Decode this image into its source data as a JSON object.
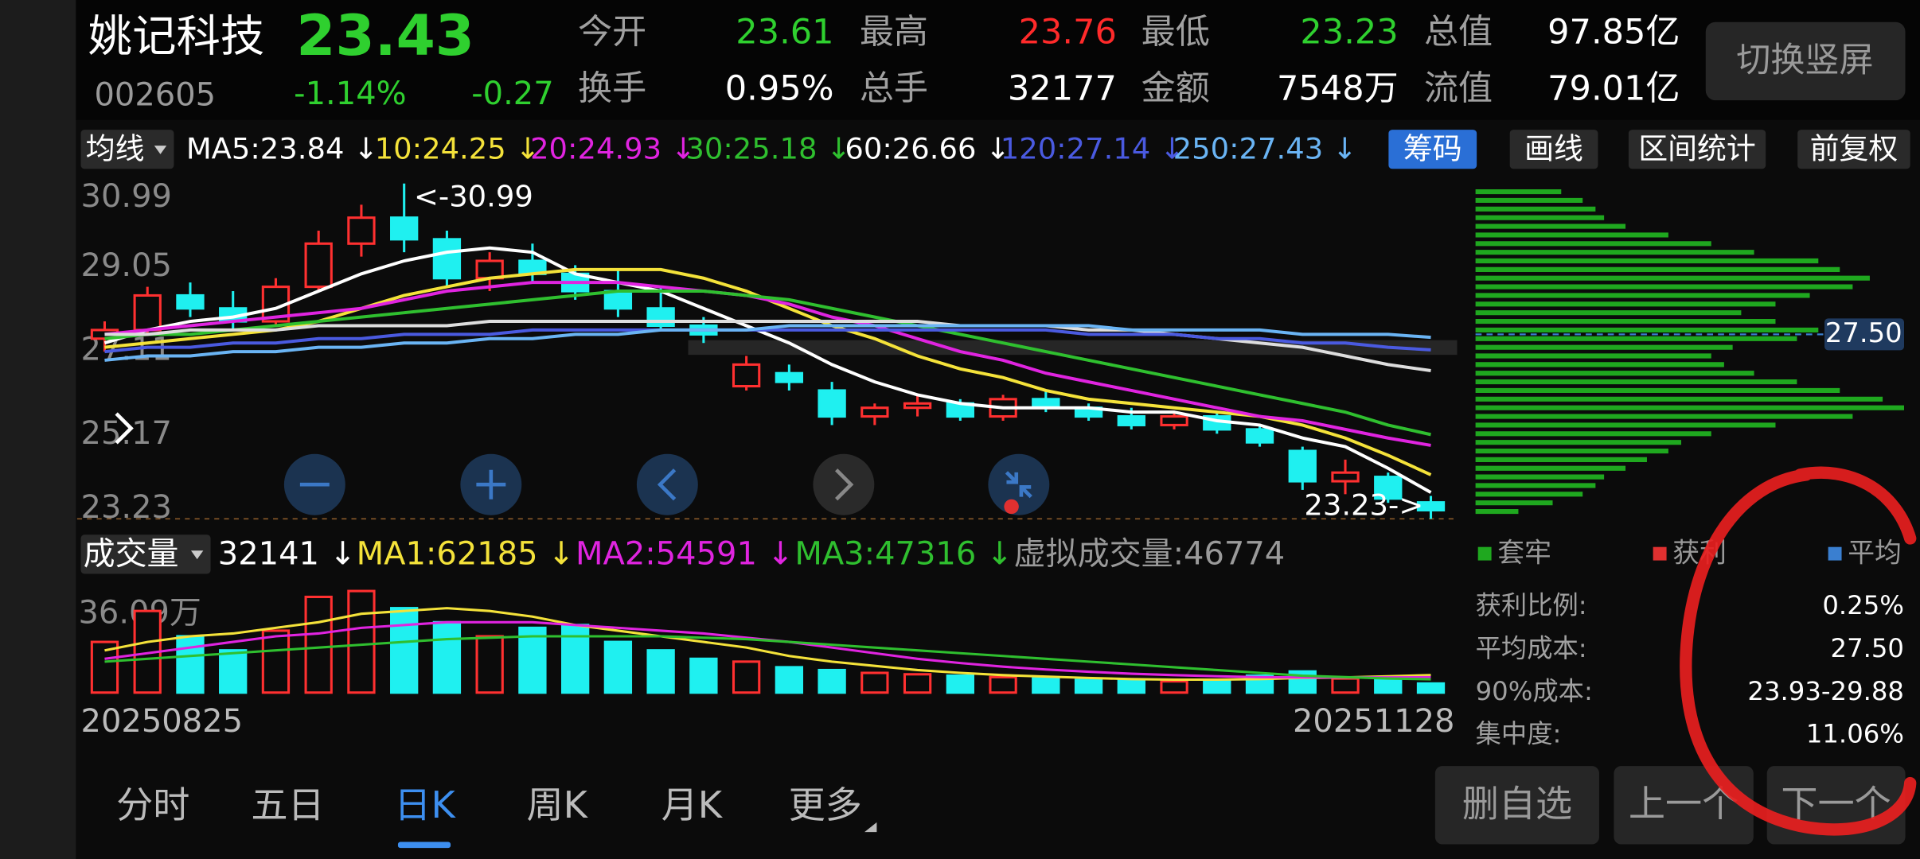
{
  "header": {
    "name": "姚记科技",
    "price": "23.43",
    "code": "002605",
    "change_pct": "-1.14%",
    "change": "-0.27",
    "quotes": [
      {
        "label": "今开",
        "value": "23.61"
      },
      {
        "label": "最高",
        "value": "23.76"
      },
      {
        "label": "最低",
        "value": "23.23"
      },
      {
        "label": "总值",
        "value": "97.85亿"
      },
      {
        "label": "换手",
        "value": "0.95%"
      },
      {
        "label": "总手",
        "value": "32177"
      },
      {
        "label": "金额",
        "value": "7548万"
      },
      {
        "label": "流值",
        "value": "79.01亿"
      }
    ],
    "switch_button": "切换竖屏"
  },
  "toolbar": {
    "ma_menu": "均线",
    "ma_legend": [
      {
        "text": "MA5:23.84 ↓",
        "color": "#ffffff"
      },
      {
        "text": "10:24.25 ↓",
        "color": "#f4e23a"
      },
      {
        "text": "20:24.93 ↓",
        "color": "#e024e0"
      },
      {
        "text": "30:25.18 ↓",
        "color": "#2fbf2f"
      },
      {
        "text": "60:26.66 ↓",
        "color": "#ffffff"
      },
      {
        "text": "120:27.14 ↓",
        "color": "#4a5ae0"
      },
      {
        "text": "250:27.43 ↓",
        "color": "#6ab4f4"
      }
    ],
    "buttons": [
      "筹码",
      "画线",
      "区间统计",
      "前复权"
    ]
  },
  "kline": {
    "type": "candlestick",
    "categories": [
      "20250825",
      null,
      null,
      null,
      null,
      null,
      null,
      null,
      null,
      null,
      null,
      null,
      null,
      null,
      null,
      null,
      null,
      null,
      null,
      null,
      null,
      null,
      null,
      null,
      null,
      null,
      null,
      null,
      null,
      null,
      null,
      "20251128"
    ],
    "open": [
      27.4,
      27.6,
      28.4,
      28.1,
      27.8,
      28.6,
      29.6,
      30.2,
      29.7,
      28.8,
      29.2,
      28.9,
      28.5,
      28.1,
      27.7,
      26.3,
      26.6,
      26.2,
      25.6,
      25.8,
      25.9,
      25.6,
      26.0,
      25.8,
      25.6,
      25.4,
      25.6,
      25.3,
      24.8,
      24.1,
      24.2,
      23.61
    ],
    "high": [
      27.8,
      28.6,
      28.7,
      28.5,
      28.8,
      29.9,
      30.5,
      30.99,
      29.9,
      29.4,
      29.6,
      29.1,
      29.0,
      28.6,
      27.9,
      27.0,
      26.8,
      26.4,
      25.9,
      26.1,
      26.0,
      26.1,
      26.2,
      25.9,
      25.8,
      25.7,
      25.7,
      25.4,
      24.9,
      24.6,
      24.3,
      23.76
    ],
    "low": [
      27.1,
      27.5,
      27.9,
      27.6,
      27.7,
      28.5,
      29.3,
      29.4,
      28.6,
      28.5,
      28.7,
      28.3,
      27.9,
      27.6,
      27.3,
      26.2,
      26.2,
      25.4,
      25.4,
      25.6,
      25.5,
      25.5,
      25.7,
      25.5,
      25.3,
      25.3,
      25.2,
      24.9,
      23.9,
      23.8,
      23.6,
      23.23
    ],
    "close": [
      27.6,
      28.4,
      28.1,
      27.8,
      28.6,
      29.6,
      30.2,
      29.7,
      28.8,
      29.2,
      28.9,
      28.5,
      28.1,
      27.7,
      27.5,
      26.8,
      26.4,
      25.6,
      25.8,
      25.9,
      25.6,
      26.0,
      25.8,
      25.6,
      25.4,
      25.6,
      25.3,
      25.0,
      24.1,
      24.3,
      23.7,
      23.43
    ],
    "up_color": "#ff3030",
    "down_color": "#1ff0f0",
    "series": [
      {
        "color": "#ffffff",
        "values": [
          27.3,
          27.6,
          27.8,
          27.9,
          28.1,
          28.5,
          28.9,
          29.2,
          29.4,
          29.5,
          29.4,
          28.9,
          28.7,
          28.5,
          28.1,
          27.7,
          27.3,
          26.8,
          26.4,
          26.1,
          25.9,
          25.8,
          25.8,
          25.8,
          25.7,
          25.7,
          25.5,
          25.4,
          25.1,
          24.9,
          24.4,
          23.84
        ]
      },
      {
        "color": "#f4e23a",
        "values": [
          27.2,
          27.3,
          27.4,
          27.5,
          27.6,
          27.8,
          28.1,
          28.4,
          28.6,
          28.8,
          28.9,
          29.0,
          29.0,
          29.0,
          28.8,
          28.5,
          28.1,
          27.7,
          27.4,
          27.0,
          26.7,
          26.5,
          26.2,
          26.0,
          25.9,
          25.8,
          25.7,
          25.6,
          25.4,
          25.1,
          24.7,
          24.25
        ]
      },
      {
        "color": "#e024e0",
        "values": [
          27.5,
          27.6,
          27.7,
          27.8,
          27.9,
          28.0,
          28.1,
          28.3,
          28.5,
          28.6,
          28.7,
          28.7,
          28.7,
          28.6,
          28.5,
          28.4,
          28.2,
          27.9,
          27.7,
          27.4,
          27.1,
          26.9,
          26.6,
          26.4,
          26.2,
          26.0,
          25.8,
          25.6,
          25.5,
          25.3,
          25.1,
          24.93
        ]
      },
      {
        "color": "#2fbf2f",
        "values": [
          27.4,
          27.5,
          27.5,
          27.6,
          27.7,
          27.8,
          27.9,
          28.0,
          28.1,
          28.2,
          28.3,
          28.4,
          28.5,
          28.5,
          28.5,
          28.4,
          28.3,
          28.1,
          27.9,
          27.7,
          27.5,
          27.3,
          27.1,
          26.9,
          26.7,
          26.5,
          26.3,
          26.1,
          25.9,
          25.7,
          25.4,
          25.18
        ]
      },
      {
        "color": "#dddddd",
        "values": [
          27.5,
          27.5,
          27.6,
          27.6,
          27.6,
          27.7,
          27.7,
          27.7,
          27.7,
          27.8,
          27.8,
          27.8,
          27.8,
          27.8,
          27.8,
          27.8,
          27.8,
          27.8,
          27.8,
          27.8,
          27.7,
          27.7,
          27.7,
          27.6,
          27.6,
          27.5,
          27.4,
          27.3,
          27.2,
          27.0,
          26.8,
          26.66
        ]
      },
      {
        "color": "#4a5ae0",
        "values": [
          27.1,
          27.2,
          27.2,
          27.3,
          27.3,
          27.4,
          27.4,
          27.5,
          27.5,
          27.5,
          27.6,
          27.6,
          27.6,
          27.6,
          27.6,
          27.6,
          27.6,
          27.6,
          27.6,
          27.6,
          27.6,
          27.6,
          27.6,
          27.5,
          27.5,
          27.5,
          27.4,
          27.4,
          27.3,
          27.3,
          27.2,
          27.14
        ]
      },
      {
        "color": "#6ab4f4",
        "values": [
          26.9,
          27.0,
          27.0,
          27.1,
          27.1,
          27.2,
          27.2,
          27.3,
          27.3,
          27.4,
          27.4,
          27.5,
          27.5,
          27.6,
          27.6,
          27.6,
          27.7,
          27.7,
          27.7,
          27.7,
          27.7,
          27.7,
          27.7,
          27.7,
          27.6,
          27.6,
          27.6,
          27.6,
          27.5,
          27.5,
          27.5,
          27.43
        ]
      }
    ],
    "ylim": [
      23.23,
      30.99
    ],
    "yticks": [
      30.99,
      29.05,
      27.11,
      25.17,
      23.23
    ],
    "high_note": "<-30.99",
    "low_note": "23.23->"
  },
  "chips": {
    "prices": [
      23.4,
      23.6,
      23.8,
      24.0,
      24.2,
      24.4,
      24.6,
      24.8,
      25.0,
      25.2,
      25.4,
      25.6,
      25.8,
      26.0,
      26.2,
      26.4,
      26.6,
      26.8,
      27.0,
      27.2,
      27.4,
      27.6,
      27.8,
      28.0,
      28.2,
      28.4,
      28.6,
      28.8,
      29.0,
      29.2,
      29.4,
      29.6,
      29.8,
      30.0,
      30.2,
      30.4,
      30.6,
      30.8
    ],
    "values": [
      10,
      18,
      25,
      28,
      30,
      35,
      40,
      45,
      48,
      55,
      70,
      88,
      100,
      95,
      85,
      75,
      65,
      58,
      55,
      60,
      75,
      80,
      70,
      62,
      70,
      78,
      88,
      92,
      85,
      80,
      65,
      55,
      45,
      35,
      30,
      28,
      25,
      20
    ],
    "xlim": [
      0,
      100
    ],
    "color": "#1fa81f",
    "avg": {
      "value": 27.5,
      "label": "27.50"
    },
    "legend": [
      {
        "text": "套牢",
        "color": "#1fa81f"
      },
      {
        "text": "获利",
        "color": "#e03030"
      },
      {
        "text": "平均",
        "color": "#3a7fd0"
      }
    ],
    "info": [
      {
        "label": "获利比例:",
        "value": "0.25%"
      },
      {
        "label": "平均成本:",
        "value": "27.50"
      },
      {
        "label": "90%成本:",
        "value": "23.93-29.88"
      },
      {
        "label": "集中度:",
        "value": "11.06%"
      }
    ]
  },
  "volume": {
    "type": "bar",
    "menu": "成交量",
    "legend": [
      {
        "text": "32141 ↓",
        "color": "#ffffff"
      },
      {
        "text": "MA1:62185 ↓",
        "color": "#f4e23a"
      },
      {
        "text": "MA2:54591 ↓",
        "color": "#e024e0"
      },
      {
        "text": "MA3:47316 ↓",
        "color": "#2fbf2f"
      },
      {
        "text": "虚拟成交量:46774",
        "color": "#9a9a9a"
      }
    ],
    "values": [
      180000,
      290000,
      200000,
      150000,
      220000,
      340000,
      360900,
      300000,
      250000,
      200000,
      230000,
      240000,
      180000,
      150000,
      120000,
      110000,
      90000,
      80000,
      70000,
      65000,
      60000,
      55000,
      50000,
      45000,
      42000,
      40000,
      45000,
      60000,
      75000,
      50000,
      45000,
      32141
    ],
    "ylim": [
      0,
      360900
    ],
    "yticks": [
      {
        "value": 360900,
        "label": "36.09万"
      }
    ],
    "series": [
      {
        "color": "#f4e23a",
        "values": [
          150000,
          180000,
          200000,
          210000,
          230000,
          250000,
          280000,
          290000,
          300000,
          290000,
          270000,
          240000,
          220000,
          200000,
          180000,
          160000,
          130000,
          110000,
          95000,
          80000,
          70000,
          62000,
          57000,
          52000,
          48000,
          46000,
          46000,
          48000,
          52000,
          54000,
          58000,
          62185
        ]
      },
      {
        "color": "#e024e0",
        "values": [
          120000,
          140000,
          160000,
          180000,
          200000,
          210000,
          230000,
          240000,
          250000,
          250000,
          250000,
          240000,
          230000,
          220000,
          210000,
          195000,
          180000,
          160000,
          140000,
          120000,
          105000,
          92000,
          82000,
          74000,
          67000,
          62000,
          58000,
          55000,
          54000,
          54000,
          54000,
          54591
        ]
      },
      {
        "color": "#2fbf2f",
        "values": [
          110000,
          120000,
          130000,
          140000,
          150000,
          160000,
          170000,
          180000,
          190000,
          195000,
          200000,
          200000,
          200000,
          200000,
          195000,
          190000,
          180000,
          170000,
          160000,
          150000,
          140000,
          130000,
          120000,
          110000,
          100000,
          90000,
          80000,
          70000,
          60000,
          55000,
          50000,
          47316
        ]
      }
    ]
  },
  "tabs": [
    "分时",
    "五日",
    "日K",
    "周K",
    "月K",
    "更多"
  ],
  "actions": [
    "删自选",
    "上一个",
    "下一个"
  ]
}
